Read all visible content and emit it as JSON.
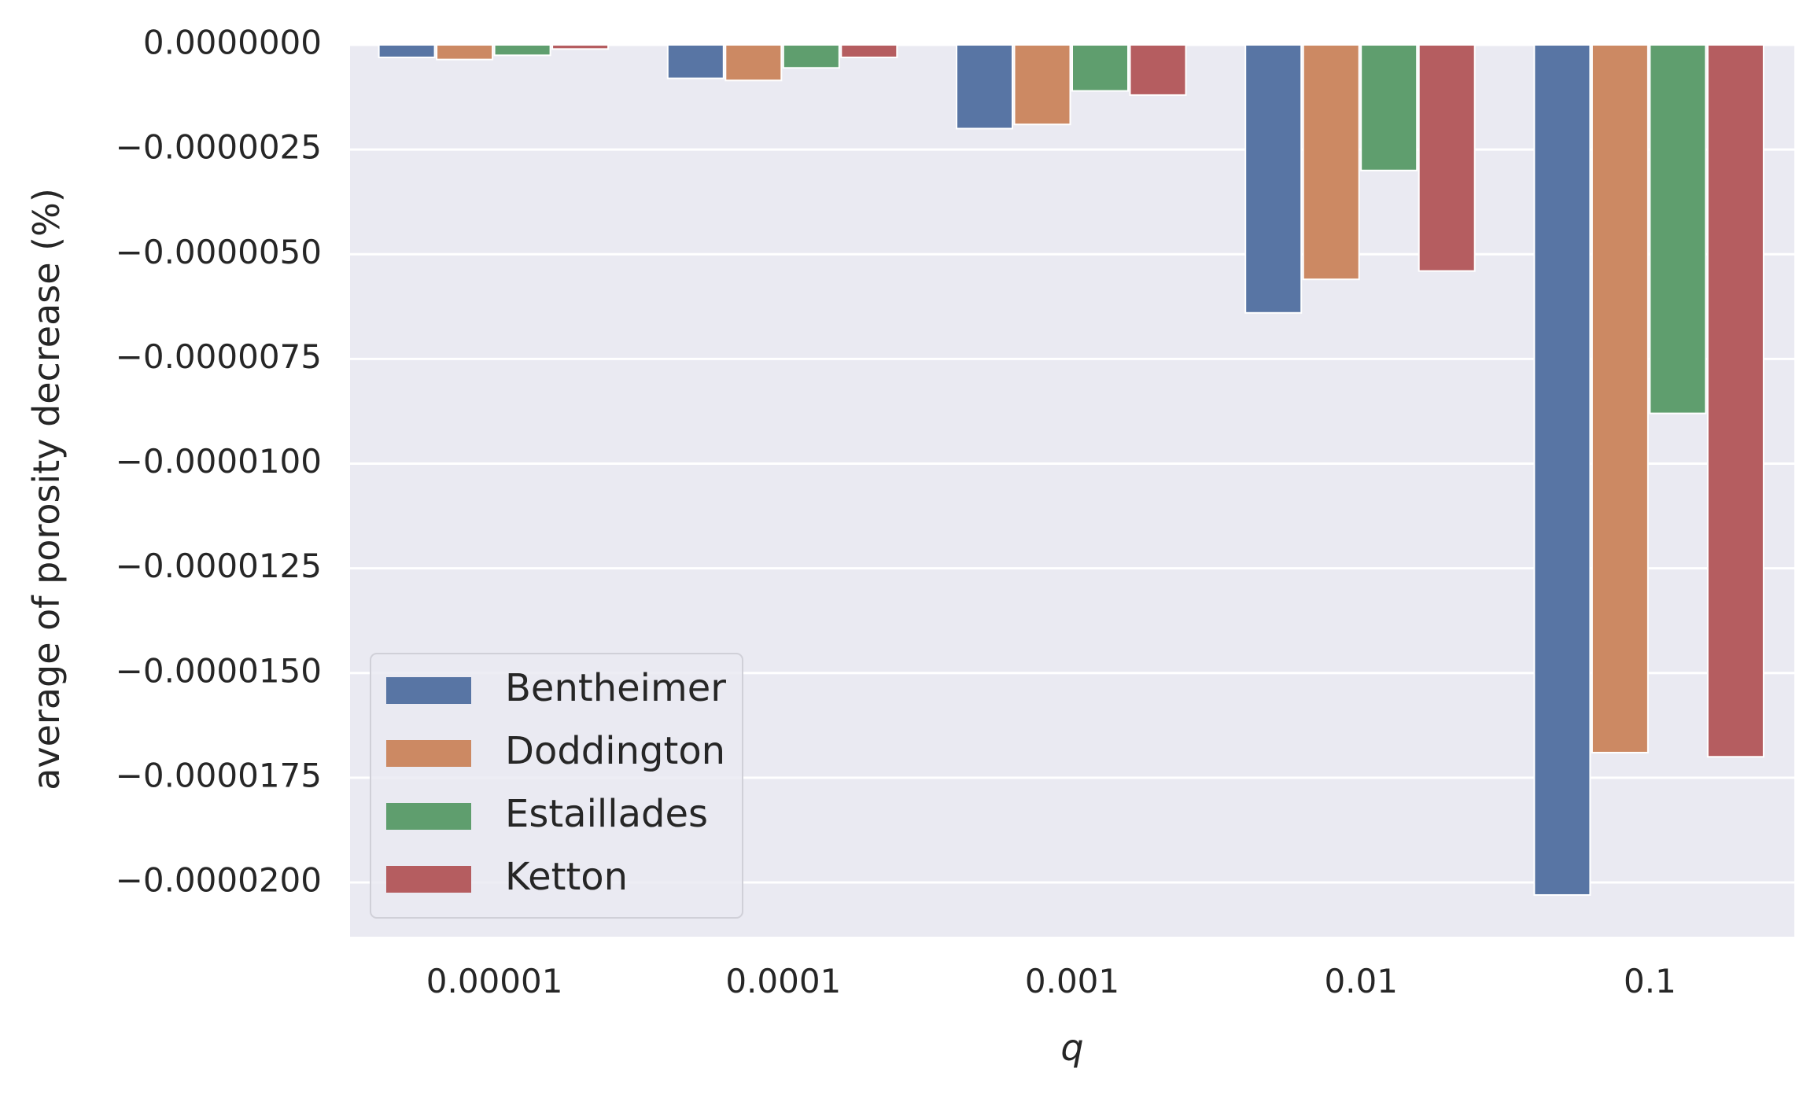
{
  "chart_data": {
    "type": "bar",
    "title": "",
    "xlabel": "q",
    "ylabel": "average of porosity decrease (%)",
    "categories": [
      "0.00001",
      "0.0001",
      "0.001",
      "0.01",
      "0.1"
    ],
    "series": [
      {
        "name": "Bentheimer",
        "color": "#5875a4",
        "values": [
          -3e-07,
          -8e-07,
          -2e-06,
          -6.4e-06,
          -2.03e-05
        ]
      },
      {
        "name": "Doddington",
        "color": "#cc8963",
        "values": [
          -3.5e-07,
          -8.5e-07,
          -1.9e-06,
          -5.6e-06,
          -1.69e-05
        ]
      },
      {
        "name": "Estaillades",
        "color": "#5f9e6e",
        "values": [
          -2.5e-07,
          -5.5e-07,
          -1.1e-06,
          -3e-06,
          -8.8e-06
        ]
      },
      {
        "name": "Ketton",
        "color": "#b55d60",
        "values": [
          -1e-07,
          -3e-07,
          -1.2e-06,
          -5.4e-06,
          -1.7e-05
        ]
      }
    ],
    "ylim": [
      -2.13e-05,
      0.0
    ],
    "y_ticks": [
      0.0,
      -2.5e-06,
      -5e-06,
      -7.5e-06,
      -1e-05,
      -1.25e-05,
      -1.5e-05,
      -1.75e-05,
      -2e-05
    ],
    "y_tick_labels": [
      "0.0000000",
      "−0.0000025",
      "−0.0000050",
      "−0.0000075",
      "−0.0000100",
      "−0.0000125",
      "−0.0000150",
      "−0.0000175",
      "−0.0000200"
    ],
    "grid": true,
    "legend_position": "lower-left",
    "background_color": "#eaeaf2",
    "grid_color": "#ffffff"
  }
}
